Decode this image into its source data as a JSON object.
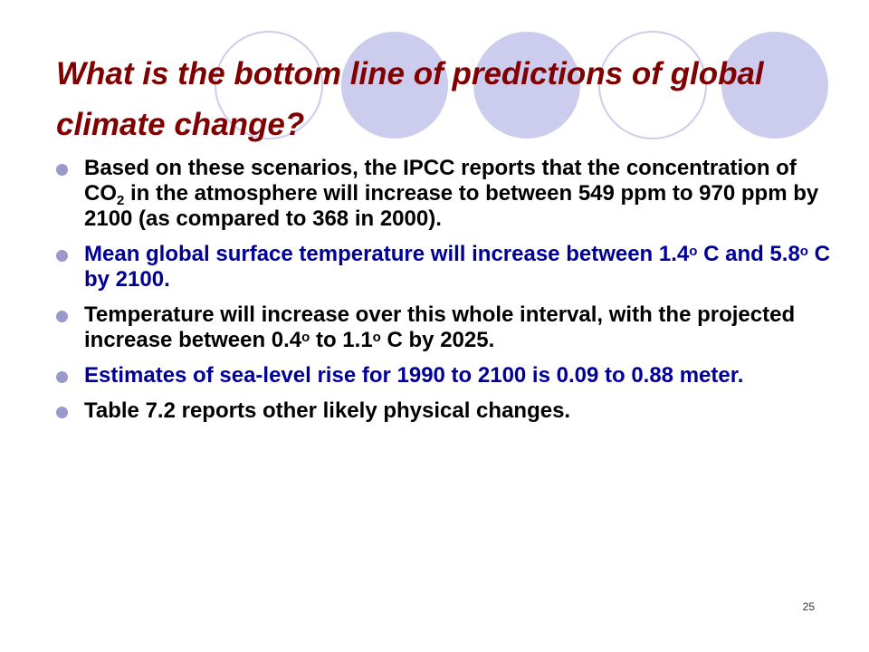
{
  "slide": {
    "title": "What is the bottom line of predictions of global climate change?",
    "bullets": [
      {
        "color": "#000000",
        "parts": [
          {
            "t": "Based on these scenarios, the IPCC reports that the concentration of CO"
          },
          {
            "t": "2",
            "style": "sub"
          },
          {
            "t": " in the atmosphere will increase to between 549 ppm to 970 ppm by 2100 (as compared to 368 in 2000)."
          }
        ]
      },
      {
        "color": "#000099",
        "parts": [
          {
            "t": "Mean global surface temperature will increase between 1.4"
          },
          {
            "t": "o",
            "style": "sup"
          },
          {
            "t": " C and 5.8"
          },
          {
            "t": "o",
            "style": "sup"
          },
          {
            "t": " C by 2100."
          }
        ]
      },
      {
        "color": "#000000",
        "parts": [
          {
            "t": "Temperature will increase over this whole interval, with the projected increase between 0.4"
          },
          {
            "t": "o",
            "style": "sup"
          },
          {
            "t": " to 1.1"
          },
          {
            "t": "o",
            "style": "sup"
          },
          {
            "t": " C by 2025."
          }
        ]
      },
      {
        "color": "#000099",
        "parts": [
          {
            "t": "Estimates of sea-level rise for 1990 to 2100 is 0.09 to 0.88 meter."
          }
        ]
      },
      {
        "color": "#000000",
        "parts": [
          {
            "t": "Table 7.2 reports other likely physical changes."
          }
        ]
      }
    ],
    "page_number": "25"
  },
  "theme": {
    "title_color": "#800000",
    "bullet_color": "#9999cc",
    "circle_fill": "#ccccee",
    "circle_stroke": "#ccccee"
  }
}
